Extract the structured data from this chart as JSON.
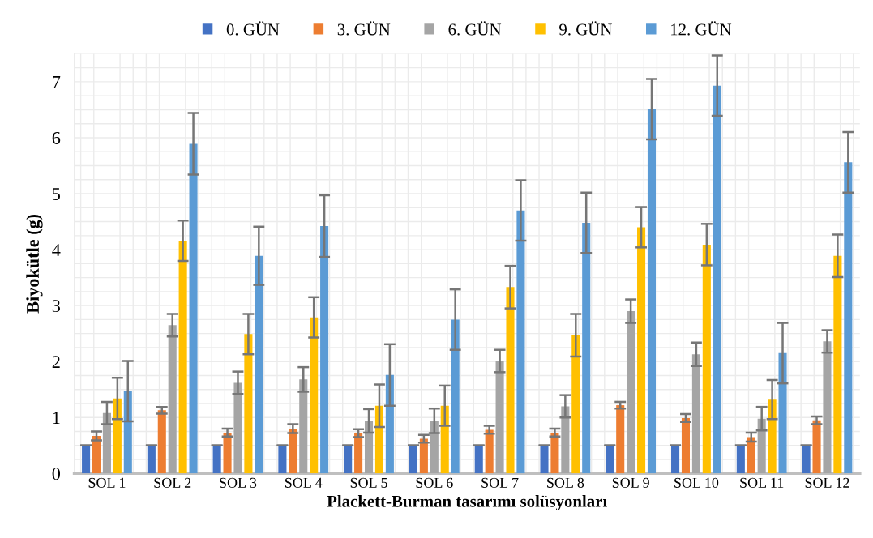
{
  "chart_data": {
    "type": "bar",
    "xlabel": "Plackett-Burman tasarımı solüsyonları",
    "ylabel": "Biyokütle (g)",
    "categories": [
      "SOL 1",
      "SOL 2",
      "SOL 3",
      "SOL 4",
      "SOL 5",
      "SOL 6",
      "SOL 7",
      "SOL 8",
      "SOL 9",
      "SOL 10",
      "SOL 11",
      "SOL 12"
    ],
    "series": [
      {
        "name": "0. GÜN",
        "color": "#4472c4",
        "values": [
          0.5,
          0.5,
          0.5,
          0.5,
          0.5,
          0.5,
          0.5,
          0.5,
          0.5,
          0.5,
          0.5,
          0.5
        ],
        "errors": [
          0,
          0,
          0,
          0,
          0,
          0,
          0,
          0,
          0,
          0,
          0,
          0
        ]
      },
      {
        "name": "3. GÜN",
        "color": "#ed7d31",
        "values": [
          0.67,
          1.13,
          0.73,
          0.8,
          0.72,
          0.62,
          0.78,
          0.73,
          1.22,
          0.99,
          0.65,
          0.95
        ],
        "errors": [
          0.08,
          0.06,
          0.07,
          0.08,
          0.07,
          0.07,
          0.07,
          0.07,
          0.06,
          0.07,
          0.08,
          0.07
        ]
      },
      {
        "name": "6. GÜN",
        "color": "#a5a5a5",
        "values": [
          1.08,
          2.65,
          1.62,
          1.68,
          0.94,
          0.94,
          2.01,
          1.2,
          2.9,
          2.13,
          0.98,
          2.36
        ],
        "errors": [
          0.2,
          0.2,
          0.2,
          0.22,
          0.21,
          0.22,
          0.2,
          0.2,
          0.21,
          0.21,
          0.21,
          0.2
        ]
      },
      {
        "name": "9. GÜN",
        "color": "#ffc000",
        "values": [
          1.34,
          4.16,
          2.49,
          2.79,
          1.21,
          1.21,
          3.33,
          2.47,
          4.4,
          4.09,
          1.32,
          3.89
        ],
        "errors": [
          0.37,
          0.36,
          0.36,
          0.36,
          0.38,
          0.36,
          0.38,
          0.38,
          0.36,
          0.37,
          0.35,
          0.38
        ]
      },
      {
        "name": "12. GÜN",
        "color": "#5b9bd5",
        "values": [
          1.47,
          5.89,
          3.89,
          4.42,
          1.76,
          2.75,
          4.7,
          4.48,
          6.51,
          6.93,
          2.15,
          5.56
        ],
        "errors": [
          0.54,
          0.55,
          0.52,
          0.55,
          0.55,
          0.54,
          0.54,
          0.54,
          0.54,
          0.54,
          0.54,
          0.54
        ]
      }
    ],
    "ylim": [
      0,
      7.5
    ],
    "yticks": [
      0,
      1,
      2,
      3,
      4,
      5,
      6,
      7
    ],
    "grid": true,
    "legend": "top"
  }
}
